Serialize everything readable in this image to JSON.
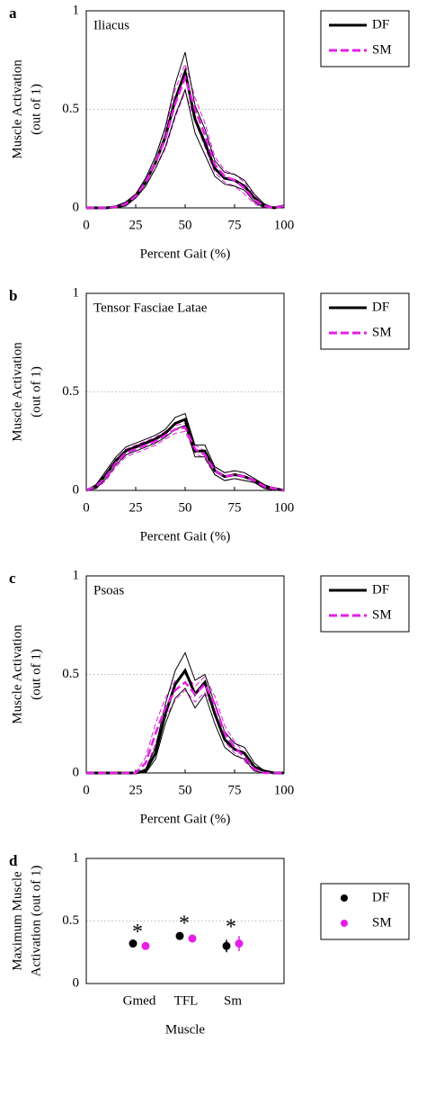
{
  "chart_data": [
    {
      "type": "line",
      "panel": "a",
      "title": "Iliacus",
      "ylabel": [
        "Muscle Activation",
        "(out of 1)"
      ],
      "xlabel": "Percent Gait (%)",
      "x": [
        0,
        5,
        10,
        15,
        20,
        25,
        30,
        35,
        40,
        45,
        50,
        55,
        60,
        65,
        70,
        75,
        80,
        85,
        90,
        95,
        100
      ],
      "xlim": [
        0,
        100
      ],
      "xticks": [
        0,
        25,
        50,
        75,
        100
      ],
      "ylim": [
        0,
        1
      ],
      "yticks": [
        0,
        0.5,
        1
      ],
      "grid": true,
      "legend": "outside-right",
      "series": [
        {
          "name": "DF",
          "color": "#000000",
          "style": "solid",
          "values": [
            0,
            0,
            0,
            0.005,
            0.02,
            0.06,
            0.13,
            0.23,
            0.36,
            0.55,
            0.69,
            0.45,
            0.33,
            0.2,
            0.15,
            0.14,
            0.11,
            0.05,
            0.01,
            0,
            0.01
          ],
          "upper": [
            0,
            0,
            0,
            0.01,
            0.03,
            0.07,
            0.15,
            0.26,
            0.41,
            0.63,
            0.79,
            0.52,
            0.4,
            0.24,
            0.18,
            0.17,
            0.14,
            0.07,
            0.02,
            0,
            0.01
          ],
          "lower": [
            0,
            0,
            0,
            0,
            0.01,
            0.05,
            0.11,
            0.2,
            0.31,
            0.47,
            0.6,
            0.38,
            0.27,
            0.16,
            0.12,
            0.11,
            0.09,
            0.03,
            0,
            0,
            0
          ]
        },
        {
          "name": "SM",
          "color": "#e61ee6",
          "style": "dashed",
          "values": [
            0,
            0,
            0,
            0.005,
            0.02,
            0.06,
            0.13,
            0.23,
            0.35,
            0.53,
            0.66,
            0.5,
            0.37,
            0.22,
            0.16,
            0.14,
            0.1,
            0.04,
            0.01,
            0,
            0.01
          ],
          "upper": [
            0,
            0,
            0,
            0.01,
            0.03,
            0.07,
            0.15,
            0.26,
            0.4,
            0.6,
            0.73,
            0.56,
            0.43,
            0.26,
            0.19,
            0.17,
            0.13,
            0.06,
            0.02,
            0,
            0.01
          ],
          "lower": [
            0,
            0,
            0,
            0,
            0.01,
            0.05,
            0.11,
            0.2,
            0.3,
            0.46,
            0.59,
            0.44,
            0.31,
            0.18,
            0.13,
            0.11,
            0.07,
            0.02,
            0,
            0,
            0
          ]
        }
      ]
    },
    {
      "type": "line",
      "panel": "b",
      "title": "Tensor Fasciae Latae",
      "ylabel": [
        "Muscle Activation",
        "(out of 1)"
      ],
      "xlabel": "Percent Gait (%)",
      "x": [
        0,
        5,
        10,
        15,
        20,
        25,
        30,
        35,
        40,
        45,
        50,
        55,
        60,
        65,
        70,
        75,
        80,
        85,
        90,
        95,
        100
      ],
      "xlim": [
        0,
        100
      ],
      "xticks": [
        0,
        25,
        50,
        75,
        100
      ],
      "ylim": [
        0,
        1
      ],
      "yticks": [
        0,
        0.5,
        1
      ],
      "grid": true,
      "legend": "outside-right",
      "series": [
        {
          "name": "DF",
          "color": "#000000",
          "style": "solid",
          "values": [
            0,
            0.02,
            0.08,
            0.15,
            0.2,
            0.22,
            0.24,
            0.26,
            0.29,
            0.34,
            0.36,
            0.2,
            0.2,
            0.1,
            0.07,
            0.08,
            0.07,
            0.05,
            0.02,
            0.01,
            0
          ],
          "upper": [
            0,
            0.03,
            0.1,
            0.17,
            0.22,
            0.24,
            0.26,
            0.28,
            0.31,
            0.37,
            0.39,
            0.23,
            0.23,
            0.12,
            0.09,
            0.1,
            0.09,
            0.06,
            0.03,
            0.01,
            0
          ],
          "lower": [
            0,
            0.01,
            0.06,
            0.13,
            0.18,
            0.2,
            0.22,
            0.24,
            0.27,
            0.31,
            0.33,
            0.17,
            0.17,
            0.08,
            0.05,
            0.06,
            0.05,
            0.04,
            0.01,
            0,
            0
          ]
        },
        {
          "name": "SM",
          "color": "#e61ee6",
          "style": "dashed",
          "values": [
            0,
            0.02,
            0.07,
            0.14,
            0.19,
            0.21,
            0.23,
            0.25,
            0.28,
            0.31,
            0.32,
            0.21,
            0.18,
            0.1,
            0.07,
            0.08,
            0.07,
            0.05,
            0.02,
            0.01,
            0
          ],
          "upper": [
            0,
            0.03,
            0.09,
            0.16,
            0.21,
            0.23,
            0.25,
            0.27,
            0.3,
            0.33,
            0.34,
            0.23,
            0.2,
            0.12,
            0.09,
            0.1,
            0.09,
            0.06,
            0.03,
            0.01,
            0
          ],
          "lower": [
            0,
            0.01,
            0.05,
            0.12,
            0.17,
            0.19,
            0.21,
            0.23,
            0.26,
            0.29,
            0.3,
            0.19,
            0.16,
            0.08,
            0.05,
            0.06,
            0.05,
            0.04,
            0.01,
            0,
            0
          ]
        }
      ]
    },
    {
      "type": "line",
      "panel": "c",
      "title": "Psoas",
      "ylabel": [
        "Muscle Activation",
        "(out of 1)"
      ],
      "xlabel": "Percent Gait (%)",
      "x": [
        0,
        5,
        10,
        15,
        20,
        25,
        30,
        35,
        40,
        45,
        50,
        55,
        60,
        65,
        70,
        75,
        80,
        85,
        90,
        95,
        100
      ],
      "xlim": [
        0,
        100
      ],
      "xticks": [
        0,
        25,
        50,
        75,
        100
      ],
      "ylim": [
        0,
        1
      ],
      "yticks": [
        0,
        0.5,
        1
      ],
      "grid": true,
      "legend": "outside-right",
      "series": [
        {
          "name": "DF",
          "color": "#000000",
          "style": "solid",
          "values": [
            0,
            0,
            0,
            0,
            0,
            0,
            0.01,
            0.1,
            0.3,
            0.45,
            0.52,
            0.4,
            0.46,
            0.3,
            0.17,
            0.12,
            0.1,
            0.03,
            0.01,
            0,
            0
          ],
          "upper": [
            0,
            0,
            0,
            0,
            0,
            0,
            0.02,
            0.13,
            0.35,
            0.52,
            0.61,
            0.47,
            0.5,
            0.35,
            0.21,
            0.15,
            0.13,
            0.05,
            0.01,
            0,
            0
          ],
          "lower": [
            0,
            0,
            0,
            0,
            0,
            0,
            0,
            0.07,
            0.25,
            0.38,
            0.43,
            0.33,
            0.4,
            0.25,
            0.13,
            0.09,
            0.07,
            0.01,
            0,
            0,
            0
          ]
        },
        {
          "name": "SM",
          "color": "#e61ee6",
          "style": "dashed",
          "values": [
            0,
            0,
            0,
            0,
            0,
            0,
            0.05,
            0.2,
            0.33,
            0.42,
            0.46,
            0.4,
            0.45,
            0.35,
            0.2,
            0.13,
            0.08,
            0.02,
            0,
            0,
            0
          ],
          "upper": [
            0,
            0,
            0,
            0,
            0,
            0,
            0.08,
            0.25,
            0.38,
            0.47,
            0.5,
            0.44,
            0.49,
            0.39,
            0.24,
            0.16,
            0.1,
            0.03,
            0.01,
            0,
            0
          ],
          "lower": [
            0,
            0,
            0,
            0,
            0,
            0,
            0.02,
            0.15,
            0.28,
            0.37,
            0.42,
            0.36,
            0.41,
            0.31,
            0.16,
            0.1,
            0.06,
            0.01,
            0,
            0,
            0
          ]
        }
      ]
    },
    {
      "type": "dot",
      "panel": "d",
      "ylabel": [
        "Maximum Muscle",
        "Activation (out of 1)"
      ],
      "xlabel": "Muscle",
      "categories": [
        "Gmed",
        "TFL",
        "Sm"
      ],
      "ylim": [
        0,
        1
      ],
      "yticks": [
        0,
        0.5,
        1
      ],
      "grid": true,
      "legend": "outside-right",
      "annotations": [
        "*",
        "*",
        "*"
      ],
      "series": [
        {
          "name": "DF",
          "color": "#000000",
          "values": [
            0.32,
            0.38,
            0.3
          ],
          "errors": [
            0.02,
            0.03,
            0.05
          ]
        },
        {
          "name": "SM",
          "color": "#e61ee6",
          "values": [
            0.3,
            0.36,
            0.32
          ],
          "errors": [
            0.015,
            0.025,
            0.06
          ]
        }
      ]
    }
  ]
}
